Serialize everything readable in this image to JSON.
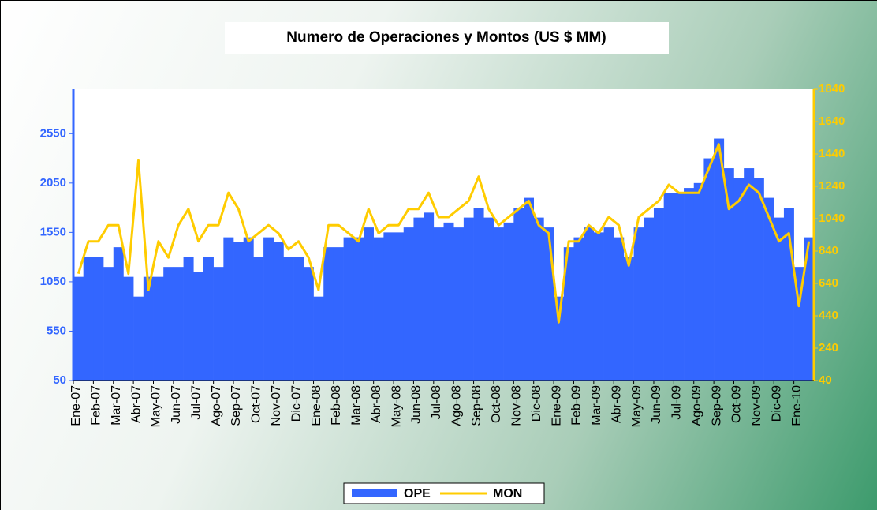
{
  "chart_data": {
    "type": "combo",
    "title": "Numero de Operaciones y Montos (US $ MM)",
    "categories": [
      "Ene-07",
      null,
      "Feb-07",
      null,
      "Mar-07",
      null,
      "Abr-07",
      null,
      "May-07",
      null,
      "Jun-07",
      null,
      "Jul-07",
      null,
      "Ago-07",
      null,
      "Sep-07",
      null,
      "Oct-07",
      null,
      "Nov-07",
      null,
      "Dic-07",
      null,
      "Ene-08",
      null,
      "Feb-08",
      null,
      "Mar-08",
      null,
      "Abr-08",
      null,
      "May-08",
      null,
      "Jun-08",
      null,
      "Jul-08",
      null,
      "Ago-08",
      null,
      "Sep-08",
      null,
      "Oct-08",
      null,
      "Nov-08",
      null,
      "Dic-08",
      null,
      "Ene-09",
      null,
      "Feb-09",
      null,
      "Mar-09",
      null,
      "Abr-09",
      null,
      "May-09",
      null,
      "Jun-09",
      null,
      "Jul-09",
      null,
      "Ago-09",
      null,
      "Sep-09",
      null,
      "Oct-09",
      null,
      "Nov-09",
      null,
      "Dic-09",
      null,
      "Ene-10",
      null
    ],
    "series": [
      {
        "name": "OPE",
        "type": "bar",
        "axis": "y",
        "color": "#3366ff",
        "values": [
          1100,
          1300,
          1300,
          1200,
          1400,
          1100,
          900,
          1100,
          1100,
          1200,
          1200,
          1300,
          1150,
          1300,
          1200,
          1500,
          1450,
          1500,
          1300,
          1500,
          1450,
          1300,
          1300,
          1200,
          900,
          1400,
          1400,
          1500,
          1500,
          1600,
          1500,
          1550,
          1550,
          1600,
          1700,
          1750,
          1600,
          1650,
          1600,
          1700,
          1800,
          1700,
          1600,
          1650,
          1800,
          1900,
          1700,
          1600,
          900,
          1400,
          1500,
          1600,
          1550,
          1600,
          1500,
          1300,
          1600,
          1700,
          1800,
          1950,
          1950,
          2000,
          2050,
          2300,
          2500,
          2200,
          2100,
          2200,
          2100,
          1900,
          1700,
          1800,
          1200,
          1500
        ]
      },
      {
        "name": "MON",
        "type": "line",
        "axis": "y2",
        "color": "#ffcc00",
        "values": [
          700,
          900,
          900,
          1000,
          1000,
          700,
          1400,
          600,
          900,
          800,
          1000,
          1100,
          900,
          1000,
          1000,
          1200,
          1100,
          900,
          950,
          1000,
          950,
          850,
          900,
          800,
          600,
          1000,
          1000,
          950,
          900,
          1100,
          950,
          1000,
          1000,
          1100,
          1100,
          1200,
          1050,
          1050,
          1100,
          1150,
          1300,
          1100,
          1000,
          1050,
          1100,
          1150,
          1000,
          950,
          400,
          900,
          900,
          1000,
          950,
          1050,
          1000,
          750,
          1050,
          1100,
          1150,
          1250,
          1200,
          1200,
          1200,
          1350,
          1500,
          1100,
          1150,
          1250,
          1200,
          1050,
          900,
          950,
          500,
          900
        ]
      }
    ],
    "ylim": [
      50,
      3000
    ],
    "yticks": [
      50,
      550,
      1050,
      1550,
      2050,
      2550
    ],
    "y2lim": [
      40,
      1840
    ],
    "y2ticks": [
      40,
      240,
      440,
      640,
      840,
      1040,
      1240,
      1440,
      1640,
      1840
    ],
    "legend": "bottom"
  }
}
